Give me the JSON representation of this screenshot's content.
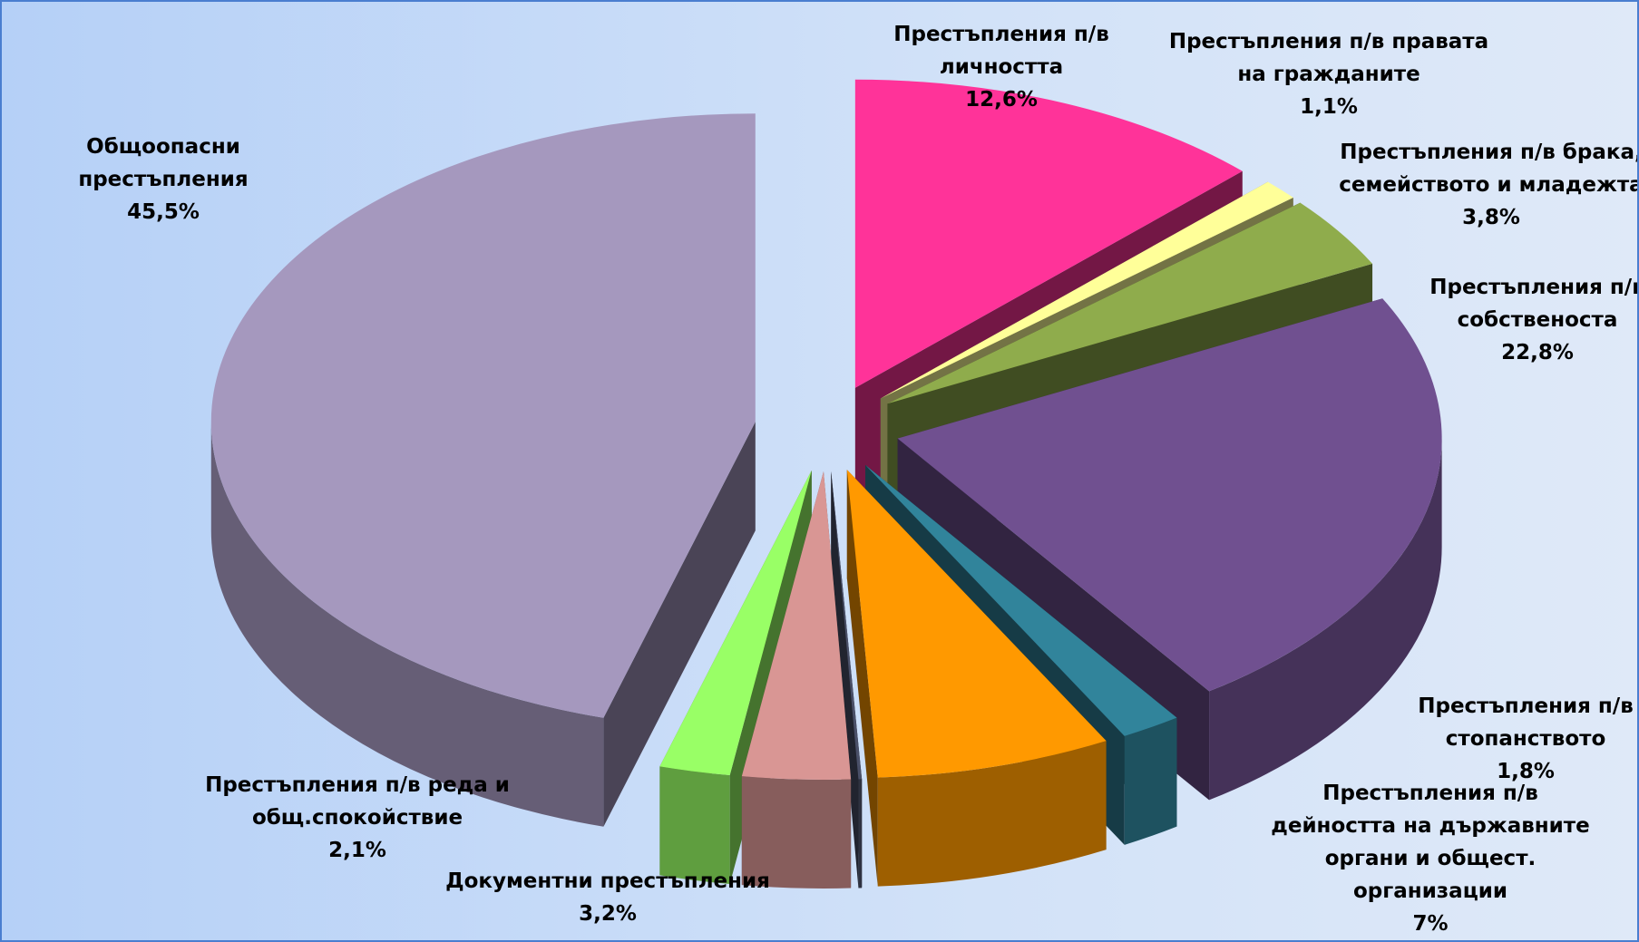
{
  "chart_data": {
    "type": "pie3d",
    "categories": [
      "Престъпления п/в личността",
      "Престъпления п/в правата на гражданите",
      "Престъпления п/в брака, семейството и младежта",
      "Престъпления п/в собственоста",
      "Престъпления п/в стопанството",
      "Престъпления п/в дейността на държавните органи и общест. организации",
      null,
      "Документни престъпления",
      "Престъпления п/в реда и общ.спокойствие",
      "Общоопасни престъпления"
    ],
    "values": [
      12.6,
      1.1,
      3.8,
      22.8,
      1.8,
      7,
      0.1,
      3.2,
      2.1,
      45.5
    ],
    "value_labels": [
      "12,6%",
      "1,1%",
      "3,8%",
      "22,8%",
      "1,8%",
      "7%",
      null,
      "3,2%",
      "2,1%",
      "45,5%"
    ],
    "colors": [
      "#ff3399",
      "#ffff99",
      "#8fac4c",
      "#705090",
      "#31849b",
      "#ff9900",
      "#4a5068",
      "#d99694",
      "#99ff66",
      "#a598be"
    ]
  }
}
